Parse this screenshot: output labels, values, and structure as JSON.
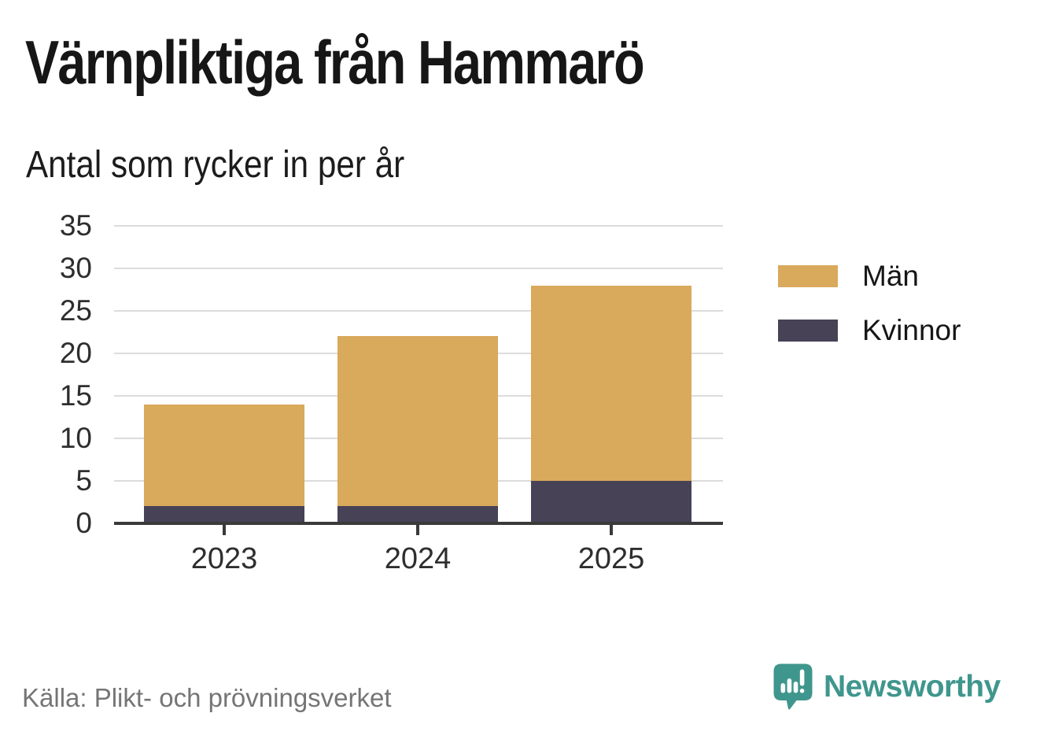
{
  "page": {
    "background": "#FFFFFF"
  },
  "title": "Värnpliktiga från Hammarö",
  "subtitle": "Antal som rycker in per år",
  "source": "Källa: Plikt- och prövningsverket",
  "brand": {
    "name": "Newsworthy",
    "color": "#3F968D",
    "icon": "speech-bubble-bar-chart-exclamation"
  },
  "chart_data": {
    "type": "bar",
    "stacked": true,
    "title": "Värnpliktiga från Hammarö",
    "subtitle": "Antal som rycker in per år",
    "categories": [
      "2023",
      "2024",
      "2025"
    ],
    "series": [
      {
        "name": "Män",
        "values": [
          12,
          20,
          23
        ],
        "color": "#D9A95C"
      },
      {
        "name": "Kvinnor",
        "values": [
          2,
          2,
          5
        ],
        "color": "#474256"
      }
    ],
    "stack_order_bottom_to_top": [
      "Kvinnor",
      "Män"
    ],
    "totals": [
      14,
      22,
      28
    ],
    "ylim": [
      0,
      35
    ],
    "yticks": [
      0,
      5,
      10,
      15,
      20,
      25,
      30,
      35
    ],
    "xlabel": "",
    "ylabel": "",
    "grid": true,
    "gridline_color": "#DCDCDC",
    "axis_color": "#3A3A3A",
    "tick_label_color": "#2E2E2E",
    "legend_position": "right"
  }
}
